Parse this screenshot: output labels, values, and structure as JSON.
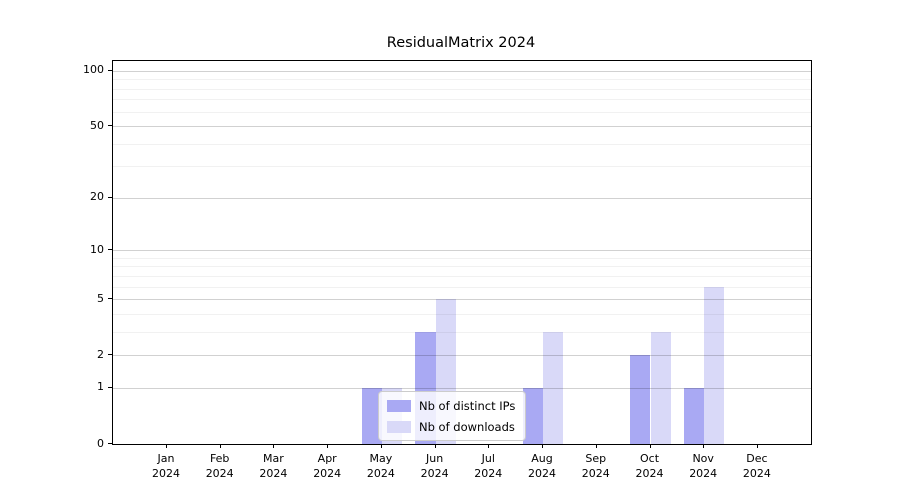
{
  "chart_data": {
    "type": "bar",
    "title": "ResidualMatrix 2024",
    "categories": [
      "Jan 2024",
      "Feb 2024",
      "Mar 2024",
      "Apr 2024",
      "May 2024",
      "Jun 2024",
      "Jul 2024",
      "Aug 2024",
      "Sep 2024",
      "Oct 2024",
      "Nov 2024",
      "Dec 2024"
    ],
    "series": [
      {
        "name": "Nb of distinct IPs",
        "color": "#a9a9f3",
        "values": [
          0,
          0,
          0,
          0,
          1,
          3,
          0,
          1,
          0,
          2,
          1,
          0
        ]
      },
      {
        "name": "Nb of downloads",
        "color": "#d9d9f8",
        "values": [
          0,
          0,
          0,
          0,
          1,
          5,
          0,
          3,
          0,
          3,
          6,
          0
        ]
      }
    ],
    "xlabel": "",
    "ylabel": "",
    "yscale": "log1p",
    "yticks": [
      0,
      1,
      2,
      5,
      10,
      20,
      50,
      100
    ],
    "yticks_minor": [
      3,
      4,
      6,
      7,
      8,
      9,
      30,
      40,
      60,
      70,
      80,
      90
    ],
    "ylim": [
      0,
      113
    ],
    "grid": true,
    "legend_position": "lower center"
  }
}
